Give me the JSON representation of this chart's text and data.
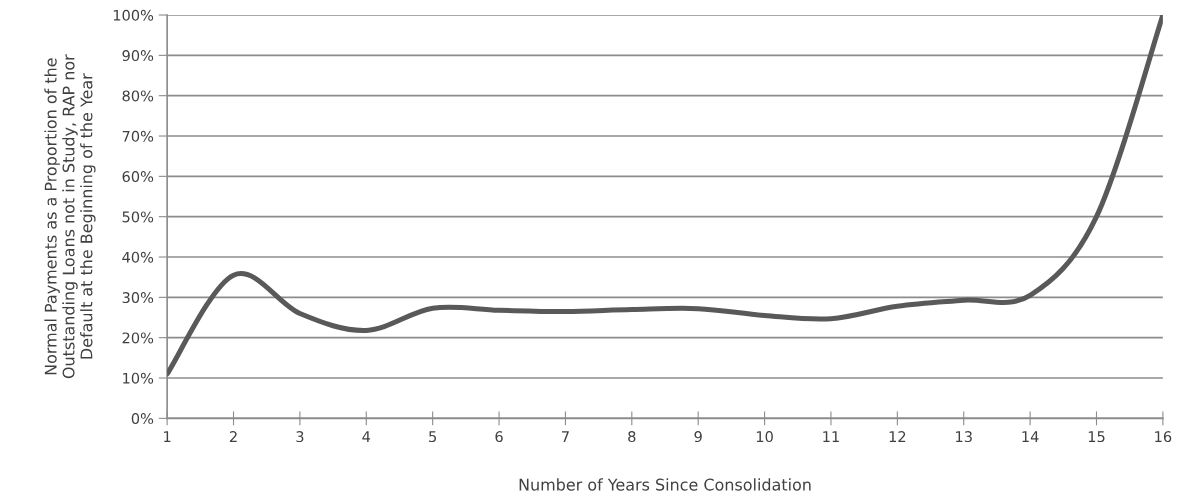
{
  "chart_data": {
    "type": "line",
    "xlabel": "Number of Years Since Consolidation",
    "ylabel": "Normal Payments as a Proportion of the\nOutstanding Loans not in Study, RAP nor\nDefault at the Beginning of the Year",
    "x": [
      1,
      2,
      3,
      4,
      5,
      6,
      7,
      8,
      9,
      10,
      11,
      12,
      13,
      14,
      15,
      16
    ],
    "series": [
      {
        "color": "#595959",
        "values": [
          0.11,
          0.355,
          0.26,
          0.218,
          0.273,
          0.268,
          0.265,
          0.27,
          0.272,
          0.255,
          0.247,
          0.278,
          0.293,
          0.305,
          0.5,
          1.0
        ]
      }
    ],
    "xlim": [
      1,
      16
    ],
    "xticks": [
      1,
      2,
      3,
      4,
      5,
      6,
      7,
      8,
      9,
      10,
      11,
      12,
      13,
      14,
      15,
      16
    ],
    "ylim": [
      0,
      1
    ],
    "yticks": [
      {
        "value": 0,
        "label": "0%"
      },
      {
        "value": 0.1,
        "label": "10%"
      },
      {
        "value": 0.2,
        "label": "20%"
      },
      {
        "value": 0.3,
        "label": "30%"
      },
      {
        "value": 0.4,
        "label": "40%"
      },
      {
        "value": 0.5,
        "label": "50%"
      },
      {
        "value": 0.6,
        "label": "60%"
      },
      {
        "value": 0.7,
        "label": "70%"
      },
      {
        "value": 0.8,
        "label": "80%"
      },
      {
        "value": 0.9,
        "label": "90%"
      },
      {
        "value": 1.0,
        "label": "100%"
      }
    ],
    "grid": "y",
    "legend": false,
    "marker": "none",
    "line_style": "solid"
  }
}
